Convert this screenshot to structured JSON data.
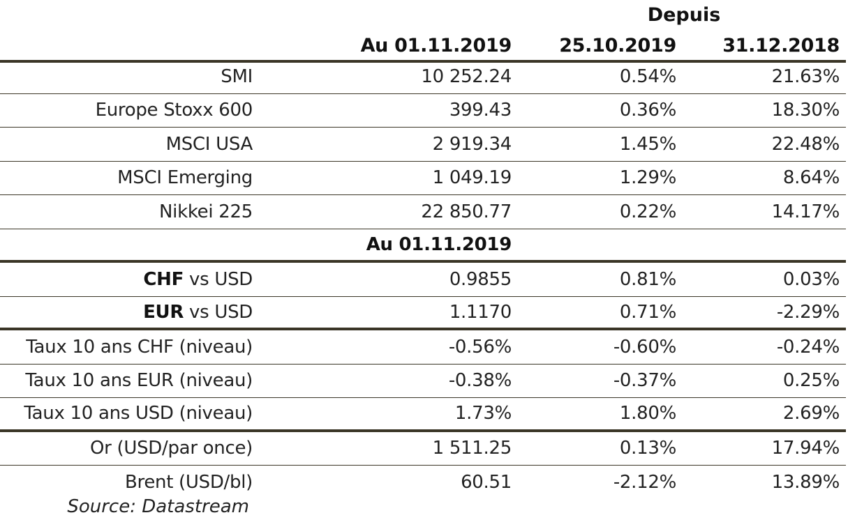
{
  "header": {
    "depuis": "Depuis",
    "col1": "Au 01.11.2019",
    "col2": "25.10.2019",
    "col3": "31.12.2018"
  },
  "equities": [
    {
      "label": "SMI",
      "value": "10 252.24",
      "week": "0.54%",
      "ytd": "21.63%"
    },
    {
      "label": "Europe Stoxx 600",
      "value": "399.43",
      "week": "0.36%",
      "ytd": "18.30%"
    },
    {
      "label": "MSCI USA",
      "value": "2 919.34",
      "week": "1.45%",
      "ytd": "22.48%"
    },
    {
      "label": "MSCI Emerging",
      "value": "1 049.19",
      "week": "1.29%",
      "ytd": "8.64%"
    },
    {
      "label": "Nikkei 225",
      "value": "22 850.77",
      "week": "0.22%",
      "ytd": "14.17%"
    }
  ],
  "subheader": {
    "col1": "Au 01.11.2019"
  },
  "fx": [
    {
      "bold": "CHF",
      "rest": " vs USD",
      "value": "0.9855",
      "week": "0.81%",
      "ytd": "0.03%"
    },
    {
      "bold": "EUR",
      "rest": " vs USD",
      "value": "1.1170",
      "week": "0.71%",
      "ytd": "-2.29%"
    }
  ],
  "rates": [
    {
      "label": "Taux 10 ans CHF (niveau)",
      "value": "-0.56%",
      "week": "-0.60%",
      "ytd": "-0.24%"
    },
    {
      "label": "Taux 10 ans EUR (niveau)",
      "value": "-0.38%",
      "week": "-0.37%",
      "ytd": "0.25%"
    },
    {
      "label": "Taux 10 ans USD (niveau)",
      "value": "1.73%",
      "week": "1.80%",
      "ytd": "2.69%"
    }
  ],
  "commodities": [
    {
      "label": "Or (USD/par once)",
      "value": "1 511.25",
      "week": "0.13%",
      "ytd": "17.94%"
    },
    {
      "label": "Brent (USD/bl)",
      "value": "60.51",
      "week": "-2.12%",
      "ytd": "13.89%"
    }
  ],
  "source": "Source: Datastream"
}
